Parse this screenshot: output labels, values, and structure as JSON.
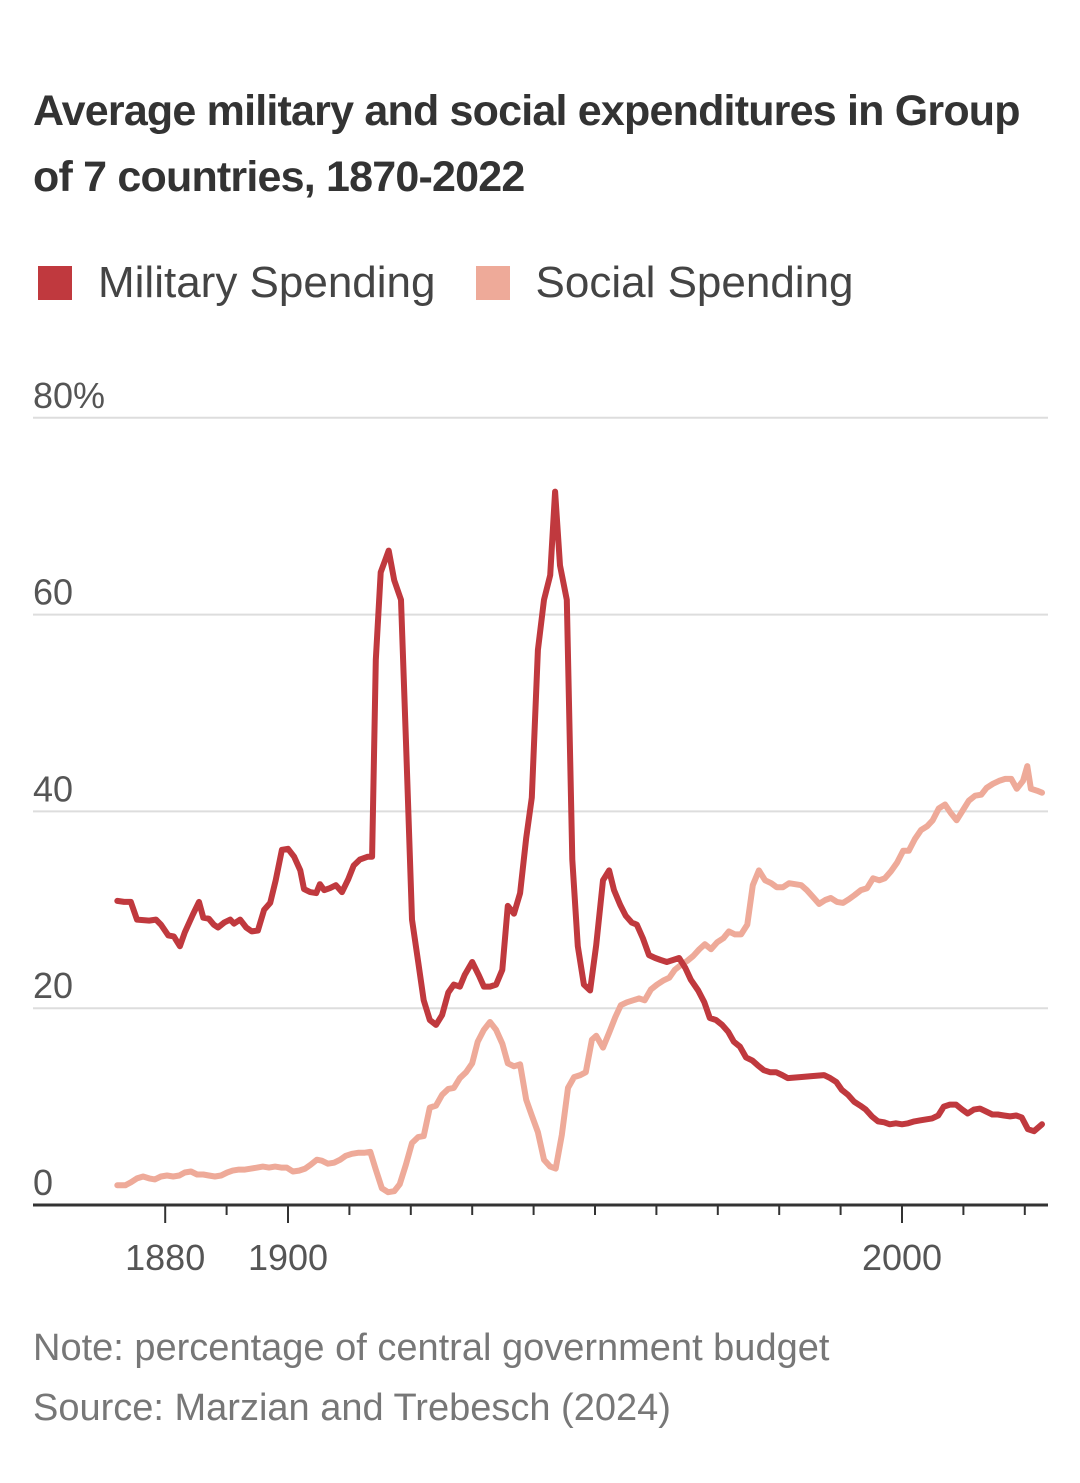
{
  "title": "Average military and social expenditures in Group of 7 countries, 1870-2022",
  "legend": [
    {
      "label": "Military Spending",
      "color": "#c0393e"
    },
    {
      "label": "Social Spending",
      "color": "#eeaa99"
    }
  ],
  "footer": {
    "note": "Note: percentage of central government budget",
    "source": "Source: Marzian and Trebesch (2024)"
  },
  "chart_data": {
    "type": "line",
    "title": "Average military and social expenditures in Group of 7 countries, 1870-2022",
    "xlabel": "",
    "ylabel": "",
    "xlim": [
      1870,
      2022
    ],
    "ylim": [
      0,
      80
    ],
    "y_ticks": [
      0,
      20,
      40,
      60,
      80
    ],
    "y_tick_labels": [
      "0",
      "20",
      "40",
      "60",
      "80%"
    ],
    "x_ticks_major": [
      1880,
      1900,
      2000
    ],
    "x_tick_labels": [
      "1880",
      "1900",
      "2000"
    ],
    "x_ticks_minor": [
      1890,
      1910,
      1920,
      1930,
      1940,
      1950,
      1960,
      1970,
      1980,
      1990,
      2010,
      2020
    ],
    "grid": true,
    "legend_position": "top-left",
    "series": [
      {
        "name": "Military Spending",
        "color": "#c0393e",
        "x": [
          1872.2,
          1873.3,
          1874.4,
          1875.4,
          1877.4,
          1878.5,
          1879.3,
          1880.5,
          1881.4,
          1882.4,
          1883.2,
          1884.5,
          1885.5,
          1886.2,
          1887.1,
          1887.9,
          1888.6,
          1889.6,
          1890.6,
          1891.2,
          1892.2,
          1893.2,
          1894.1,
          1895.1,
          1896.1,
          1897.1,
          1898.0,
          1899.0,
          1900.0,
          1901.0,
          1902.0,
          1902.6,
          1903.6,
          1904.6,
          1905.2,
          1905.9,
          1906.8,
          1907.8,
          1908.8,
          1909.8,
          1910.7,
          1911.7,
          1913.0,
          1913.7,
          1914.3,
          1915.1,
          1916.4,
          1917.3,
          1918.4,
          1919.2,
          1920.2,
          1921.2,
          1922.1,
          1923.1,
          1924.1,
          1925.1,
          1926.1,
          1927.0,
          1928.0,
          1928.8,
          1930.0,
          1931.1,
          1931.9,
          1932.9,
          1933.9,
          1934.9,
          1935.8,
          1936.8,
          1937.8,
          1938.8,
          1939.7,
          1940.7,
          1941.7,
          1942.7,
          1943.5,
          1944.3,
          1945.4,
          1946.3,
          1947.2,
          1948.2,
          1949.2,
          1950.2,
          1951.3,
          1952.3,
          1953.1,
          1954.1,
          1955.0,
          1956.0,
          1956.8,
          1957.8,
          1958.8,
          1959.8,
          1960.7,
          1961.7,
          1962.7,
          1963.7,
          1964.7,
          1965.6,
          1966.8,
          1967.8,
          1968.7,
          1969.7,
          1970.7,
          1971.7,
          1972.6,
          1973.6,
          1974.6,
          1975.6,
          1976.5,
          1977.5,
          1978.5,
          1979.5,
          1980.5,
          1981.4,
          1983.4,
          1985.3,
          1987.3,
          1988.3,
          1989.3,
          1990.2,
          1991.2,
          1992.2,
          1993.2,
          1994.1,
          1995.1,
          1996.1,
          1997.1,
          1998.0,
          1999.0,
          2000.0,
          2001.0,
          2002.0,
          2002.9,
          2003.9,
          2004.9,
          2005.9,
          2006.8,
          2007.8,
          2008.8,
          2009.8,
          2010.7,
          2011.7,
          2012.7,
          2013.7,
          2014.7,
          2015.6,
          2016.6,
          2017.6,
          2018.6,
          2019.5,
          2020.5,
          2021.5,
          2022.8
        ],
        "values": [
          30.9,
          30.8,
          30.8,
          29.0,
          28.9,
          29.0,
          28.5,
          27.4,
          27.3,
          26.3,
          27.7,
          29.5,
          30.8,
          29.2,
          29.1,
          28.5,
          28.2,
          28.7,
          29.0,
          28.6,
          29.0,
          28.2,
          27.8,
          27.9,
          30.0,
          30.7,
          33.0,
          36.1,
          36.2,
          35.4,
          34.0,
          32.1,
          31.8,
          31.7,
          32.6,
          32.0,
          32.2,
          32.5,
          31.8,
          33.1,
          34.5,
          35.1,
          35.4,
          35.4,
          55.4,
          64.3,
          66.5,
          63.5,
          61.5,
          47.3,
          29.0,
          24.7,
          20.8,
          18.8,
          18.3,
          19.3,
          21.6,
          22.4,
          22.2,
          23.4,
          24.7,
          23.3,
          22.2,
          22.2,
          22.4,
          23.9,
          30.4,
          29.6,
          31.7,
          37.3,
          41.4,
          56.4,
          61.5,
          64.0,
          72.5,
          65.0,
          61.5,
          35.1,
          26.3,
          22.4,
          21.8,
          26.4,
          33.0,
          34.0,
          32.0,
          30.5,
          29.4,
          28.7,
          28.5,
          27.1,
          25.4,
          25.1,
          24.9,
          24.7,
          24.9,
          25.1,
          24.1,
          22.9,
          21.8,
          20.6,
          19.0,
          18.8,
          18.3,
          17.6,
          16.6,
          16.1,
          15.0,
          14.7,
          14.2,
          13.7,
          13.5,
          13.5,
          13.2,
          12.9,
          13.0,
          13.1,
          13.2,
          12.9,
          12.5,
          11.7,
          11.2,
          10.5,
          10.1,
          9.7,
          9.0,
          8.5,
          8.4,
          8.2,
          8.3,
          8.2,
          8.3,
          8.5,
          8.6,
          8.7,
          8.8,
          9.1,
          10.0,
          10.2,
          10.2,
          9.7,
          9.3,
          9.7,
          9.8,
          9.5,
          9.2,
          9.2,
          9.1,
          9.0,
          9.1,
          8.9,
          7.7,
          7.5,
          8.2
        ]
      },
      {
        "name": "Social Spending",
        "color": "#eeaa99",
        "x": [
          1872.2,
          1873.5,
          1874.4,
          1875.4,
          1876.4,
          1877.4,
          1878.3,
          1879.3,
          1880.3,
          1881.3,
          1882.3,
          1883.2,
          1884.2,
          1885.2,
          1886.2,
          1887.1,
          1888.1,
          1889.1,
          1890.1,
          1891.0,
          1892.0,
          1893.0,
          1894.0,
          1895.0,
          1895.9,
          1896.9,
          1897.9,
          1898.9,
          1899.8,
          1900.8,
          1901.8,
          1902.8,
          1903.7,
          1904.7,
          1905.5,
          1906.5,
          1907.5,
          1908.5,
          1909.4,
          1910.4,
          1911.4,
          1912.4,
          1913.4,
          1914.3,
          1915.3,
          1916.3,
          1917.3,
          1918.2,
          1919.2,
          1920.2,
          1921.2,
          1922.1,
          1923.1,
          1924.1,
          1925.1,
          1926.1,
          1927.0,
          1928.0,
          1929.0,
          1930.0,
          1930.9,
          1931.9,
          1932.9,
          1933.9,
          1934.9,
          1935.8,
          1936.8,
          1937.8,
          1938.8,
          1939.7,
          1940.7,
          1941.7,
          1942.7,
          1943.6,
          1944.6,
          1945.6,
          1946.6,
          1947.6,
          1948.5,
          1949.5,
          1950.2,
          1951.3,
          1952.3,
          1953.3,
          1954.2,
          1955.2,
          1956.2,
          1957.2,
          1958.1,
          1959.1,
          1960.1,
          1961.1,
          1962.1,
          1963.0,
          1964.0,
          1965.0,
          1966.0,
          1967.0,
          1967.9,
          1968.9,
          1969.9,
          1970.9,
          1971.8,
          1972.8,
          1973.8,
          1974.8,
          1975.7,
          1976.7,
          1977.7,
          1978.7,
          1979.6,
          1980.6,
          1981.6,
          1982.6,
          1983.6,
          1984.5,
          1985.5,
          1986.5,
          1987.5,
          1988.4,
          1989.4,
          1990.4,
          1991.4,
          1992.3,
          1993.3,
          1994.3,
          1995.3,
          1996.3,
          1997.2,
          1998.2,
          1999.2,
          2000.2,
          2001.1,
          2002.1,
          2003.1,
          2004.1,
          2005.0,
          2006.0,
          2007.0,
          2008.0,
          2008.9,
          2009.9,
          2010.9,
          2011.9,
          2012.9,
          2013.8,
          2014.8,
          2015.8,
          2016.8,
          2017.8,
          2018.7,
          2019.7,
          2020.4,
          2021.0,
          2022.0,
          2022.8
        ],
        "values": [
          2.0,
          2.0,
          2.3,
          2.7,
          2.9,
          2.7,
          2.6,
          2.9,
          3.0,
          2.9,
          3.0,
          3.3,
          3.4,
          3.1,
          3.1,
          3.0,
          2.9,
          3.0,
          3.3,
          3.5,
          3.6,
          3.6,
          3.7,
          3.8,
          3.9,
          3.8,
          3.9,
          3.8,
          3.8,
          3.4,
          3.5,
          3.7,
          4.1,
          4.6,
          4.5,
          4.2,
          4.3,
          4.6,
          5.0,
          5.2,
          5.3,
          5.3,
          5.4,
          3.6,
          1.7,
          1.3,
          1.4,
          2.1,
          4.1,
          6.3,
          6.9,
          7.0,
          9.9,
          10.1,
          11.2,
          11.8,
          11.9,
          12.9,
          13.5,
          14.4,
          16.6,
          17.8,
          18.6,
          17.8,
          16.4,
          14.4,
          14.1,
          14.3,
          10.7,
          9.1,
          7.4,
          4.6,
          3.9,
          3.7,
          7.1,
          11.9,
          13.0,
          13.2,
          13.5,
          16.8,
          17.2,
          16.0,
          17.5,
          19.1,
          20.3,
          20.6,
          20.8,
          21.0,
          20.8,
          21.9,
          22.4,
          22.8,
          23.1,
          23.9,
          24.4,
          24.8,
          25.3,
          26.0,
          26.5,
          26.0,
          26.7,
          27.1,
          27.8,
          27.5,
          27.5,
          28.5,
          32.5,
          34.0,
          33.0,
          32.7,
          32.3,
          32.3,
          32.7,
          32.6,
          32.5,
          32.0,
          31.3,
          30.6,
          31.0,
          31.2,
          30.8,
          30.7,
          31.1,
          31.5,
          32.0,
          32.2,
          33.2,
          33.0,
          33.2,
          33.9,
          34.8,
          36.0,
          36.0,
          37.2,
          38.1,
          38.5,
          39.1,
          40.3,
          40.7,
          39.8,
          39.1,
          40.1,
          41.1,
          41.6,
          41.7,
          42.4,
          42.8,
          43.1,
          43.3,
          43.3,
          42.3,
          43.1,
          44.6,
          42.3,
          42.1,
          41.9
        ]
      }
    ]
  }
}
